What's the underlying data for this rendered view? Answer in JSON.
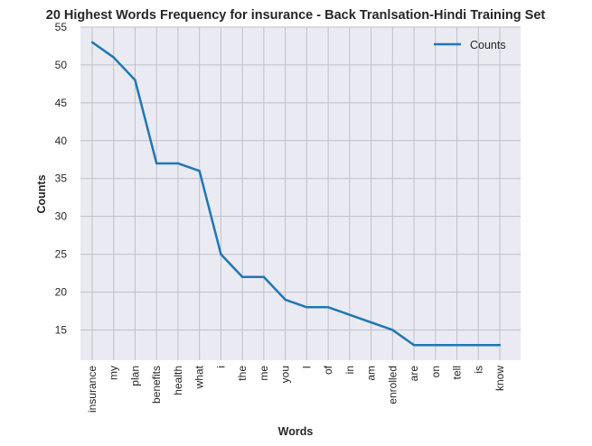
{
  "chart_data": {
    "type": "line",
    "title": "20 Highest Words Frequency for insurance - Back Tranlsation-Hindi Training Set",
    "xlabel": "Words",
    "ylabel": "Counts",
    "categories": [
      "insurance",
      "my",
      "plan",
      "benefits",
      "health",
      "what",
      "i",
      "the",
      "me",
      "you",
      "I",
      "of",
      "in",
      "am",
      "enrolled",
      "are",
      "on",
      "tell",
      "is",
      "know"
    ],
    "series": [
      {
        "name": "Counts",
        "values": [
          53,
          51,
          48,
          37,
          37,
          36,
          25,
          22,
          22,
          19,
          18,
          18,
          17,
          16,
          15,
          13,
          13,
          13,
          13,
          13
        ]
      }
    ],
    "ylim": [
      11,
      55
    ],
    "yticks": [
      15,
      20,
      25,
      30,
      35,
      40,
      45,
      50,
      55
    ],
    "grid": true,
    "legend": "top-right",
    "colors": {
      "line": "#1f77b4",
      "plot_background": "#eaeaf2",
      "grid": "#c0c0c8"
    }
  }
}
